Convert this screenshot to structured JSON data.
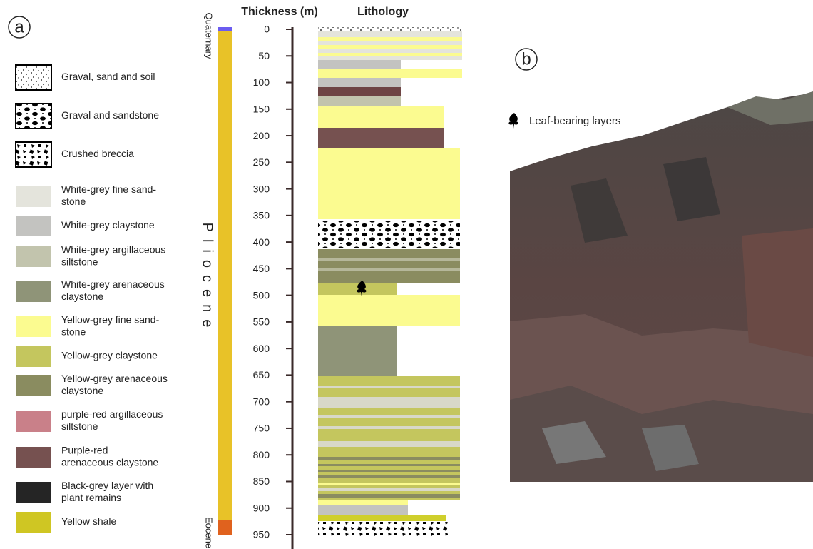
{
  "panel_a": {
    "label": "a",
    "legend": [
      {
        "lines": [
          "Graval, sand and soil"
        ]
      },
      {
        "lines": [
          "Graval and sandstone"
        ]
      },
      {
        "lines": [
          "Crushed breccia"
        ]
      },
      {
        "lines": [
          "White-grey fine sand-",
          "stone"
        ]
      },
      {
        "lines": [
          "White-grey claystone"
        ]
      },
      {
        "lines": [
          "White-grey argillaceous",
          "siltstone"
        ]
      },
      {
        "lines": [
          "White-grey arenaceous",
          "claystone"
        ]
      },
      {
        "lines": [
          "Yellow-grey fine sand-",
          "stone"
        ]
      },
      {
        "lines": [
          "Yellow-grey claystone"
        ]
      },
      {
        "lines": [
          "Yellow-grey arenaceous",
          "claystone"
        ]
      },
      {
        "lines": [
          "purple-red argillaceous",
          "siltstone"
        ]
      },
      {
        "lines": [
          "Purple-red",
          "arenaceous claystone"
        ]
      },
      {
        "lines": [
          "Black-grey layer with",
          "plant remains"
        ]
      },
      {
        "lines": [
          "Yellow shale"
        ]
      }
    ],
    "ages": [
      "Quaternary",
      "Pliocene",
      "Eocene"
    ],
    "axis_title": "Thickness (m)",
    "column_title": "Lithology",
    "ticks": [
      0,
      50,
      100,
      150,
      200,
      250,
      300,
      350,
      400,
      450,
      500,
      550,
      600,
      650,
      700,
      750,
      800,
      850,
      900,
      950
    ]
  },
  "panel_b": {
    "label": "b",
    "legend": "Leaf-bearing layers"
  }
}
